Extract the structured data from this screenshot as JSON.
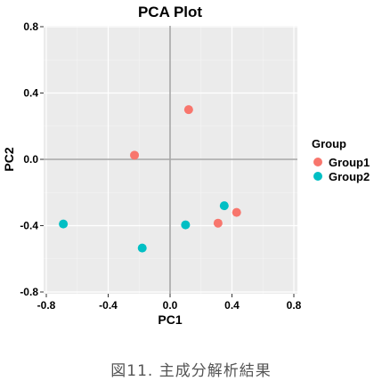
{
  "chart_data": {
    "type": "scatter",
    "title": "PCA Plot",
    "xlabel": "PC1",
    "ylabel": "PC2",
    "xlim": [
      -0.8,
      0.8
    ],
    "ylim": [
      -0.8,
      0.8
    ],
    "xticks": [
      -0.8,
      -0.4,
      0.0,
      0.4,
      0.8
    ],
    "yticks": [
      -0.8,
      -0.4,
      0.0,
      0.4,
      0.8
    ],
    "xtick_labels": [
      "-0.8",
      "-0.4",
      "0.0",
      "0.4",
      "0.8"
    ],
    "ytick_labels": [
      "-0.8",
      "-0.4",
      "0.0",
      "0.4",
      "0.8"
    ],
    "grid": true,
    "reference_lines": {
      "x": 0,
      "y": 0
    },
    "legend": {
      "title": "Group",
      "position": "right"
    },
    "series": [
      {
        "name": "Group1",
        "color": "#F8766D",
        "points": [
          {
            "x": 0.12,
            "y": 0.3
          },
          {
            "x": -0.23,
            "y": 0.025
          },
          {
            "x": 0.31,
            "y": -0.385
          },
          {
            "x": 0.43,
            "y": -0.32
          }
        ]
      },
      {
        "name": "Group2",
        "color": "#00BFC4",
        "points": [
          {
            "x": -0.69,
            "y": -0.39
          },
          {
            "x": -0.18,
            "y": -0.535
          },
          {
            "x": 0.1,
            "y": -0.395
          },
          {
            "x": 0.35,
            "y": -0.28
          }
        ]
      }
    ]
  },
  "caption": "図11. 主成分解析結果"
}
